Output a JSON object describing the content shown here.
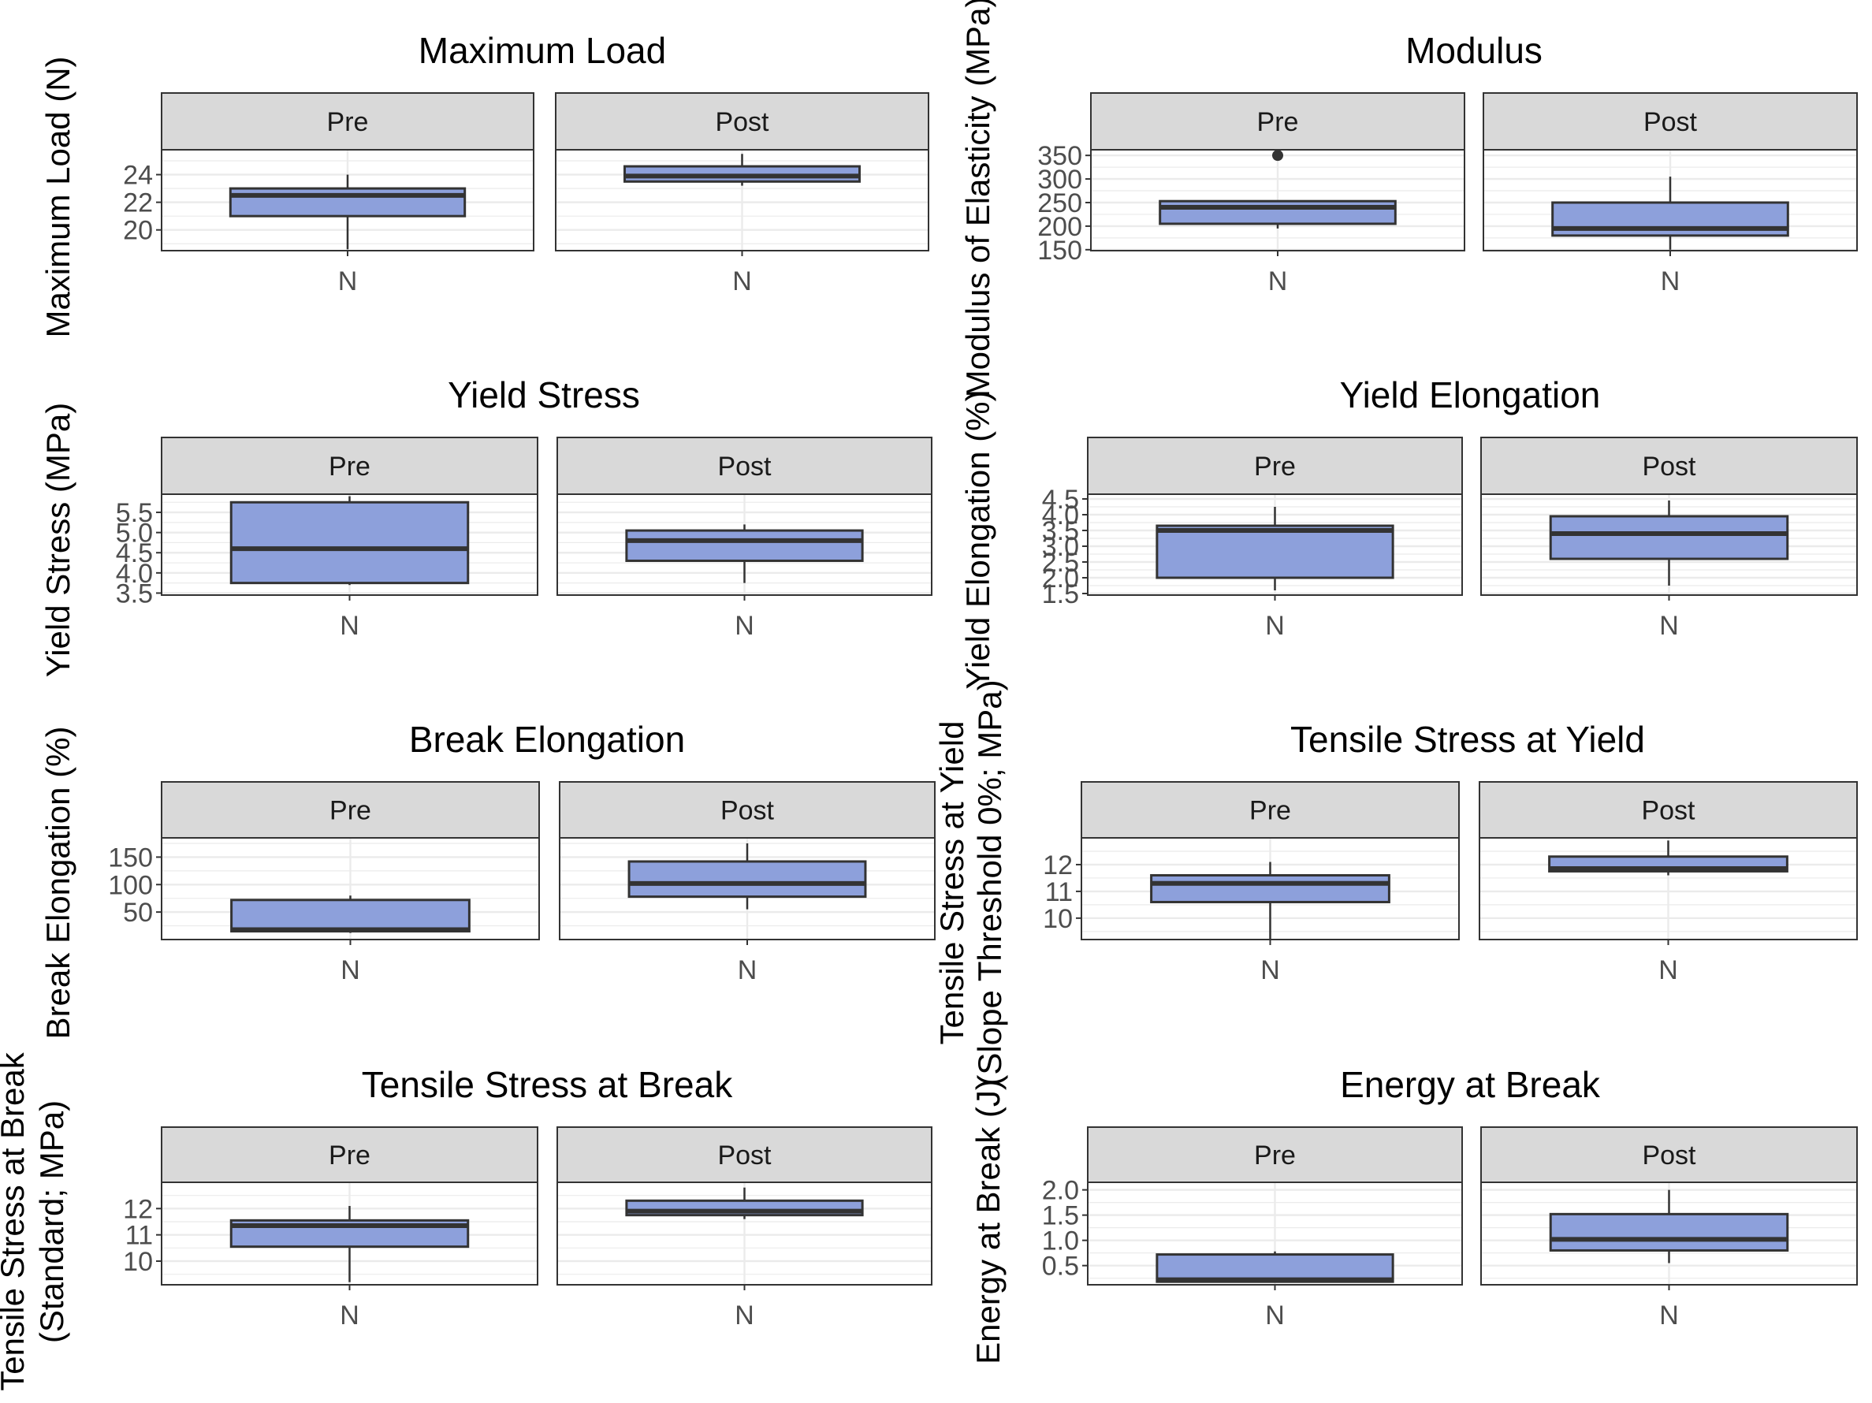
{
  "colors": {
    "box_fill": "#8DA0DB",
    "box_stroke": "#333333",
    "strip_fill": "#D9D9D9",
    "panel_border": "#333333",
    "grid": "#EBEBEB",
    "text": "#000000",
    "tick_text": "#4D4D4D"
  },
  "chart_data": [
    {
      "type": "box",
      "title": "Maximum Load",
      "ylabel": "Maximum Load (N)",
      "ylim": [
        18.5,
        25.8
      ],
      "yticks": [
        20,
        22,
        24
      ],
      "ytick_labels": [
        "20",
        "22",
        "24"
      ],
      "categories": [
        "N"
      ],
      "facets": [
        {
          "label": "Pre",
          "boxes": [
            {
              "category": "N",
              "min": 18.6,
              "q1": 21.0,
              "median": 22.5,
              "q3": 23.0,
              "max": 24.0,
              "outliers": []
            }
          ]
        },
        {
          "label": "Post",
          "boxes": [
            {
              "category": "N",
              "min": 23.2,
              "q1": 23.5,
              "median": 23.9,
              "q3": 24.6,
              "max": 25.5,
              "outliers": []
            }
          ]
        }
      ]
    },
    {
      "type": "box",
      "title": "Modulus",
      "ylabel": "Modulus of Elasticity (MPa)",
      "ylim": [
        148,
        362
      ],
      "yticks": [
        150,
        200,
        250,
        300,
        350
      ],
      "ytick_labels": [
        "150",
        "200",
        "250",
        "300",
        "350"
      ],
      "categories": [
        "N"
      ],
      "facets": [
        {
          "label": "Pre",
          "boxes": [
            {
              "category": "N",
              "min": 195,
              "q1": 205,
              "median": 240,
              "q3": 253,
              "max": 253,
              "outliers": [
                350
              ]
            }
          ]
        },
        {
          "label": "Post",
          "boxes": [
            {
              "category": "N",
              "min": 150,
              "q1": 180,
              "median": 195,
              "q3": 250,
              "max": 305,
              "outliers": []
            }
          ]
        }
      ]
    },
    {
      "type": "box",
      "title": "Yield Stress",
      "ylabel": "Yield Stress (MPa)",
      "ylim": [
        3.45,
        5.95
      ],
      "yticks": [
        3.5,
        4.0,
        4.5,
        5.0,
        5.5
      ],
      "ytick_labels": [
        "3.5",
        "4.0",
        "4.5",
        "5.0",
        "5.5"
      ],
      "categories": [
        "N"
      ],
      "facets": [
        {
          "label": "Pre",
          "boxes": [
            {
              "category": "N",
              "min": 3.7,
              "q1": 3.75,
              "median": 4.6,
              "q3": 5.75,
              "max": 5.9,
              "outliers": []
            }
          ]
        },
        {
          "label": "Post",
          "boxes": [
            {
              "category": "N",
              "min": 3.75,
              "q1": 4.3,
              "median": 4.8,
              "q3": 5.05,
              "max": 5.2,
              "outliers": []
            }
          ]
        }
      ]
    },
    {
      "type": "box",
      "title": "Yield Elongation",
      "ylabel": "Yield Elongation (%)",
      "ylim": [
        1.45,
        4.65
      ],
      "yticks": [
        1.5,
        2.0,
        2.5,
        3.0,
        3.5,
        4.0,
        4.5
      ],
      "ytick_labels": [
        "1.5",
        "2.0",
        "2.5",
        "3.0",
        "3.5",
        "4.0",
        "4.5"
      ],
      "categories": [
        "N"
      ],
      "facets": [
        {
          "label": "Pre",
          "boxes": [
            {
              "category": "N",
              "min": 1.6,
              "q1": 2.0,
              "median": 3.5,
              "q3": 3.65,
              "max": 4.25,
              "outliers": []
            }
          ]
        },
        {
          "label": "Post",
          "boxes": [
            {
              "category": "N",
              "min": 1.75,
              "q1": 2.6,
              "median": 3.4,
              "q3": 3.95,
              "max": 4.45,
              "outliers": []
            }
          ]
        }
      ]
    },
    {
      "type": "box",
      "title": "Break Elongation",
      "ylabel": "Break Elongation (%)",
      "ylim": [
        0,
        185
      ],
      "yticks": [
        50,
        100,
        150
      ],
      "ytick_labels": [
        "50",
        "100",
        "150"
      ],
      "categories": [
        "N"
      ],
      "facets": [
        {
          "label": "Pre",
          "boxes": [
            {
              "category": "N",
              "min": 12,
              "q1": 15,
              "median": 18,
              "q3": 72,
              "max": 80,
              "outliers": []
            }
          ]
        },
        {
          "label": "Post",
          "boxes": [
            {
              "category": "N",
              "min": 55,
              "q1": 78,
              "median": 102,
              "q3": 142,
              "max": 175,
              "outliers": []
            }
          ]
        }
      ]
    },
    {
      "type": "box",
      "title": "Tensile Stress at Yield",
      "ylabel": "Tensile Stress at Yield (Slope Threshold 0%; MPa)",
      "ylim": [
        9.2,
        13.0
      ],
      "yticks": [
        10,
        11,
        12
      ],
      "ytick_labels": [
        "10",
        "11",
        "12"
      ],
      "categories": [
        "N"
      ],
      "facets": [
        {
          "label": "Pre",
          "boxes": [
            {
              "category": "N",
              "min": 9.2,
              "q1": 10.6,
              "median": 11.3,
              "q3": 11.6,
              "max": 12.1,
              "outliers": []
            }
          ]
        },
        {
          "label": "Post",
          "boxes": [
            {
              "category": "N",
              "min": 11.6,
              "q1": 11.75,
              "median": 11.85,
              "q3": 12.3,
              "max": 12.9,
              "outliers": []
            }
          ]
        }
      ]
    },
    {
      "type": "box",
      "title": "Tensile Stress at Break",
      "ylabel": "Tensile Stress at Break (Standard; MPa)",
      "ylim": [
        9.1,
        13.0
      ],
      "yticks": [
        10,
        11,
        12
      ],
      "ytick_labels": [
        "10",
        "11",
        "12"
      ],
      "categories": [
        "N"
      ],
      "facets": [
        {
          "label": "Pre",
          "boxes": [
            {
              "category": "N",
              "min": 9.2,
              "q1": 10.55,
              "median": 11.35,
              "q3": 11.55,
              "max": 12.1,
              "outliers": []
            }
          ]
        },
        {
          "label": "Post",
          "boxes": [
            {
              "category": "N",
              "min": 11.6,
              "q1": 11.75,
              "median": 11.9,
              "q3": 12.3,
              "max": 12.8,
              "outliers": []
            }
          ]
        }
      ]
    },
    {
      "type": "box",
      "title": "Energy at Break",
      "ylabel": "Energy at Break (J)",
      "ylim": [
        0.12,
        2.15
      ],
      "yticks": [
        0.5,
        1.0,
        1.5,
        2.0
      ],
      "ytick_labels": [
        "0.5",
        "1.0",
        "1.5",
        "2.0"
      ],
      "categories": [
        "N"
      ],
      "facets": [
        {
          "label": "Pre",
          "boxes": [
            {
              "category": "N",
              "min": 0.17,
              "q1": 0.18,
              "median": 0.22,
              "q3": 0.72,
              "max": 0.78,
              "outliers": []
            }
          ]
        },
        {
          "label": "Post",
          "boxes": [
            {
              "category": "N",
              "min": 0.55,
              "q1": 0.8,
              "median": 1.02,
              "q3": 1.52,
              "max": 2.0,
              "outliers": []
            }
          ]
        }
      ]
    }
  ]
}
